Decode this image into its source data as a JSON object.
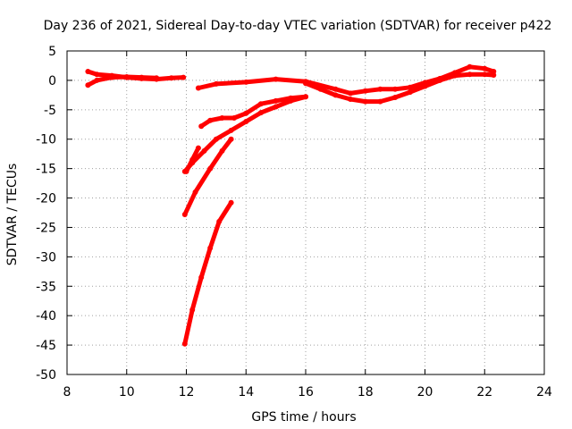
{
  "chart_data": {
    "type": "scatter",
    "title": "Day 236 of 2021, Sidereal Day-to-day VTEC variation (SDTVAR) for receiver p422",
    "xlabel": "GPS time / hours",
    "ylabel": "SDTVAR / TECUs",
    "xlim": [
      8,
      24
    ],
    "ylim": [
      -50,
      5
    ],
    "x_ticks": [
      8,
      10,
      12,
      14,
      16,
      18,
      20,
      22,
      24
    ],
    "y_ticks": [
      5,
      0,
      -5,
      -10,
      -15,
      -20,
      -25,
      -30,
      -35,
      -40,
      -45,
      -50
    ],
    "grid": true,
    "legend": "none",
    "color": "#ff0000",
    "series": [
      {
        "x": [
          8.7,
          9.0,
          9.5,
          10.0,
          10.5,
          11.0,
          11.5,
          11.9
        ],
        "y": [
          1.5,
          1.0,
          0.8,
          0.5,
          0.3,
          0.2,
          0.4,
          0.5
        ]
      },
      {
        "x": [
          8.7,
          9.0,
          9.5,
          10.0,
          10.5,
          11.0
        ],
        "y": [
          -0.8,
          0.0,
          0.5,
          0.6,
          0.5,
          0.4
        ]
      },
      {
        "x": [
          12.4,
          13.0,
          14.0,
          15.0,
          16.0,
          17.0,
          17.5,
          18.0,
          18.5,
          19.0,
          19.5,
          20.0,
          20.5,
          21.0,
          21.5,
          22.0,
          22.3
        ],
        "y": [
          -1.3,
          -0.6,
          -0.3,
          0.2,
          -0.2,
          -1.5,
          -2.2,
          -1.8,
          -1.5,
          -1.5,
          -1.2,
          -0.4,
          0.3,
          1.3,
          2.3,
          2.0,
          1.5
        ]
      },
      {
        "x": [
          16.0,
          16.5,
          17.0,
          17.5,
          18.0,
          18.5,
          19.0,
          19.5,
          20.0,
          20.5,
          21.0,
          21.5,
          22.0,
          22.3
        ],
        "y": [
          -0.5,
          -1.5,
          -2.5,
          -3.2,
          -3.6,
          -3.6,
          -2.9,
          -2.0,
          -1.0,
          0.0,
          0.8,
          1.0,
          1.0,
          0.9
        ]
      },
      {
        "x": [
          12.5,
          12.8,
          13.2,
          13.6,
          14.0,
          14.5,
          15.0,
          15.5,
          16.0
        ],
        "y": [
          -7.8,
          -6.8,
          -6.4,
          -6.4,
          -5.6,
          -4.0,
          -3.5,
          -3.0,
          -2.8
        ]
      },
      {
        "x": [
          11.95,
          12.2,
          12.6,
          13.0,
          13.5,
          14.0,
          14.5,
          15.0,
          15.5,
          16.0
        ],
        "y": [
          -15.5,
          -14.0,
          -12.0,
          -10.0,
          -8.5,
          -7.0,
          -5.5,
          -4.5,
          -3.5,
          -2.8
        ]
      },
      {
        "x": [
          12.0,
          12.2,
          12.4
        ],
        "y": [
          -15.5,
          -13.5,
          -11.5
        ]
      },
      {
        "x": [
          11.95,
          12.3,
          12.8,
          13.2,
          13.5
        ],
        "y": [
          -22.8,
          -19.0,
          -15.0,
          -12.0,
          -10.0
        ]
      },
      {
        "x": [
          11.95,
          12.2,
          12.5,
          12.8,
          13.1,
          13.5
        ],
        "y": [
          -44.8,
          -39.0,
          -33.5,
          -28.5,
          -24.0,
          -20.8
        ]
      }
    ]
  }
}
